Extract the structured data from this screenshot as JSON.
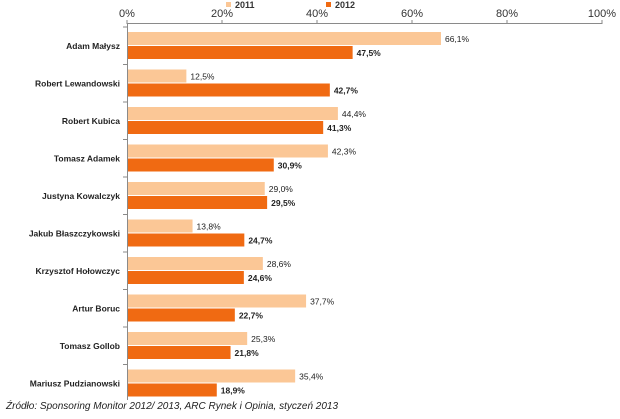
{
  "chart_data": {
    "type": "bar",
    "orientation": "horizontal",
    "categories": [
      "Adam Małysz",
      "Robert Lewandowski",
      "Robert Kubica",
      "Tomasz Adamek",
      "Justyna Kowalczyk",
      "Jakub Błaszczykowski",
      "Krzysztof Hołowczyc",
      "Artur Boruc",
      "Tomasz Gollob",
      "Mariusz Pudzianowski"
    ],
    "series": [
      {
        "name": "2011",
        "color": "#fbc796",
        "values": [
          66.1,
          12.5,
          44.4,
          42.3,
          29.0,
          13.8,
          28.6,
          37.7,
          25.3,
          35.4
        ],
        "labels": [
          "66,1%",
          "12,5%",
          "44,4%",
          "42,3%",
          "29,0%",
          "13,8%",
          "28,6%",
          "37,7%",
          "25,3%",
          "35,4%"
        ]
      },
      {
        "name": "2012",
        "color": "#f06a12",
        "values": [
          47.5,
          42.7,
          41.3,
          30.9,
          29.5,
          24.7,
          24.6,
          22.7,
          21.8,
          18.9
        ],
        "labels": [
          "47,5%",
          "42,7%",
          "41,3%",
          "30,9%",
          "29,5%",
          "24,7%",
          "24,6%",
          "22,7%",
          "21,8%",
          "18,9%"
        ]
      }
    ],
    "xlim": [
      0,
      100
    ],
    "xticks": [
      0,
      20,
      40,
      60,
      80,
      100
    ],
    "xtick_labels": [
      "0%",
      "20%",
      "40%",
      "60%",
      "80%",
      "100%"
    ],
    "legend_position": "top",
    "grid": false,
    "axis_color": "#8a8a8a"
  },
  "source": "Źródło: Sponsoring Monitor 2012/ 2013, ARC Rynek i Opinia, styczeń 2013"
}
